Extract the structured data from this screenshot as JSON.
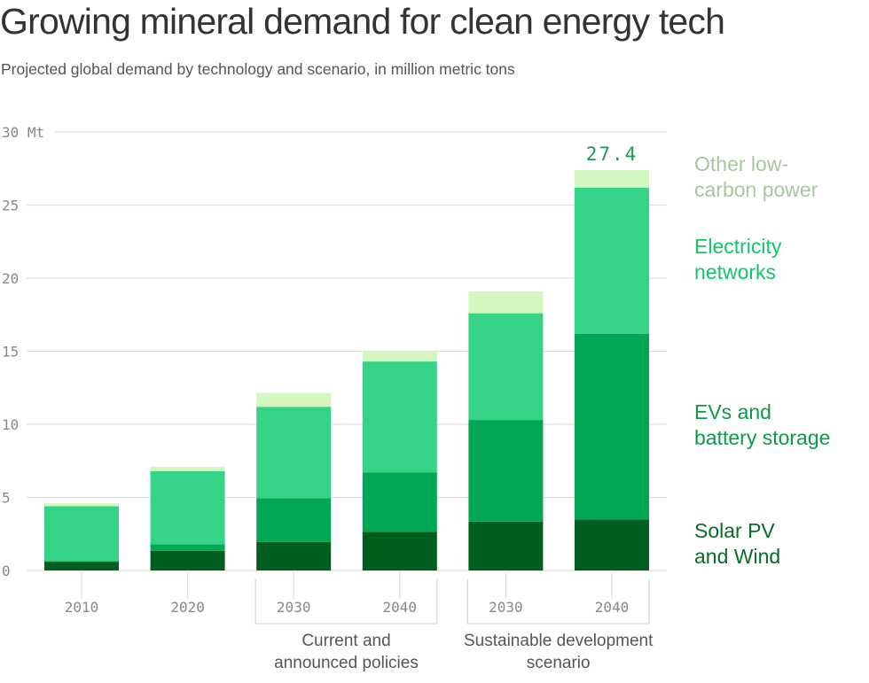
{
  "chart_data": {
    "type": "bar",
    "stacked": true,
    "title": "Growing mineral demand for clean energy tech",
    "subtitle": "Projected global demand by technology and scenario, in million metric tons",
    "ylabel": "Mt",
    "ylim": [
      0,
      30
    ],
    "yticks": [
      0,
      5,
      10,
      15,
      20,
      25,
      30
    ],
    "ytick_labels": [
      "0",
      "5",
      "10",
      "15",
      "20",
      "25",
      "30 Mt"
    ],
    "grid": true,
    "categories": [
      "2010",
      "2020",
      "2030",
      "2040",
      "2030",
      "2040"
    ],
    "groups": [
      {
        "label_lines": [
          "Current and",
          "announced policies"
        ],
        "category_indices": [
          2,
          3
        ]
      },
      {
        "label_lines": [
          "Sustainable development",
          "scenario"
        ],
        "category_indices": [
          4,
          5
        ]
      }
    ],
    "series": [
      {
        "name": "Solar PV and Wind",
        "legend_lines": [
          "Solar PV",
          "and Wind"
        ],
        "color": "#005f1e",
        "text_color": "#0a6b26",
        "values": [
          0.6,
          1.35,
          1.95,
          2.65,
          3.35,
          3.5
        ]
      },
      {
        "name": "EVs and battery storage",
        "legend_lines": [
          "EVs and",
          "battery storage"
        ],
        "color": "#00a855",
        "text_color": "#0c9a47",
        "values": [
          0.05,
          0.45,
          3.0,
          4.05,
          6.95,
          12.7
        ]
      },
      {
        "name": "Electricity networks",
        "legend_lines": [
          "Electricity",
          "networks"
        ],
        "color": "#35d388",
        "text_color": "#13c56b",
        "values": [
          3.75,
          5.0,
          6.25,
          7.6,
          7.3,
          10.0
        ]
      },
      {
        "name": "Other low-carbon power",
        "legend_lines": [
          "Other low-",
          "carbon power"
        ],
        "color": "#d4f7c0",
        "text_color": "#a9c79d",
        "values": [
          0.2,
          0.3,
          0.95,
          0.7,
          1.5,
          1.2
        ]
      }
    ],
    "annotations": [
      {
        "category_index": 5,
        "text": "27.4",
        "color": "#1f9a56"
      }
    ],
    "legend_placement": "right"
  }
}
